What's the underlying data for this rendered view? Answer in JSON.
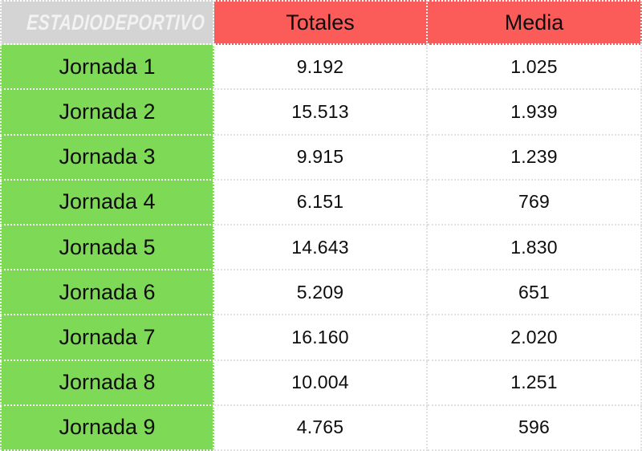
{
  "brand": {
    "logo_text": "ESTADIODEPORTIVO"
  },
  "header": {
    "totales_label": "Totales",
    "media_label": "Media"
  },
  "rows": [
    {
      "label": "Jornada 1",
      "totales": "9.192",
      "media": "1.025"
    },
    {
      "label": "Jornada 2",
      "totales": "15.513",
      "media": "1.939"
    },
    {
      "label": "Jornada 3",
      "totales": "9.915",
      "media": "1.239"
    },
    {
      "label": "Jornada 4",
      "totales": "6.151",
      "media": "769"
    },
    {
      "label": "Jornada 5",
      "totales": "14.643",
      "media": "1.830"
    },
    {
      "label": "Jornada 6",
      "totales": "5.209",
      "media": "651"
    },
    {
      "label": "Jornada 7",
      "totales": "16.160",
      "media": "2.020"
    },
    {
      "label": "Jornada 8",
      "totales": "10.004",
      "media": "1.251"
    },
    {
      "label": "Jornada 9",
      "totales": "4.765",
      "media": "596"
    }
  ],
  "colors": {
    "header_red": "#fb5b59",
    "row_green": "#7ed957",
    "logo_gray": "#d4d4d4",
    "grid_light": "#e0e0e0",
    "text_black": "#0d0d0d"
  },
  "chart_data": {
    "type": "table",
    "columns": [
      "",
      "Totales",
      "Media"
    ],
    "categories": [
      "Jornada 1",
      "Jornada 2",
      "Jornada 3",
      "Jornada 4",
      "Jornada 5",
      "Jornada 6",
      "Jornada 7",
      "Jornada 8",
      "Jornada 9"
    ],
    "series": [
      {
        "name": "Totales",
        "values": [
          9192,
          15513,
          9915,
          6151,
          14643,
          5209,
          16160,
          10004,
          4765
        ]
      },
      {
        "name": "Media",
        "values": [
          1025,
          1939,
          1239,
          769,
          1830,
          651,
          2020,
          1251,
          596
        ]
      }
    ],
    "title": "",
    "number_format": "es-ES thousands separator (dot)",
    "layout": "header row red, category column green, data cells white, dotted grid"
  }
}
